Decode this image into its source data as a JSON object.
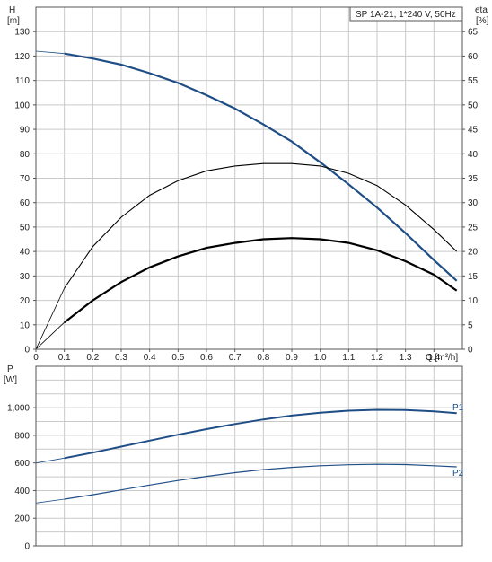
{
  "chart_data": [
    {
      "type": "line",
      "title": "SP 1A-21, 1*240 V, 50Hz",
      "xlabel": "Q [m³/h]",
      "ylabel_left": [
        "H",
        "[m]"
      ],
      "ylabel_right": [
        "eta",
        "[%]"
      ],
      "xlim": [
        0,
        1.5
      ],
      "ylim_left": [
        0,
        140
      ],
      "ylim_right": [
        0,
        70
      ],
      "x_ticks": [
        "0",
        "0.1",
        "0.2",
        "0.3",
        "0.4",
        "0.5",
        "0.6",
        "0.7",
        "0.8",
        "0.9",
        "1.0",
        "1.1",
        "1.2",
        "1.3",
        "1.4"
      ],
      "y_ticks_left": [
        "0",
        "10",
        "20",
        "30",
        "40",
        "50",
        "60",
        "70",
        "80",
        "90",
        "100",
        "110",
        "120",
        "130"
      ],
      "y_ticks_right": [
        "0",
        "5",
        "10",
        "15",
        "20",
        "25",
        "30",
        "35",
        "40",
        "45",
        "50",
        "55",
        "60",
        "65"
      ],
      "grid": true,
      "series": [
        {
          "axis": "left",
          "color": "#1f4e87",
          "x": [
            0,
            0.1,
            0.2,
            0.3,
            0.4,
            0.5,
            0.6,
            0.7,
            0.8,
            0.9,
            1.0,
            1.1,
            1.2,
            1.3,
            1.4,
            1.48
          ],
          "values": [
            122,
            121,
            119,
            116.5,
            113,
            109,
            104,
            98.5,
            92,
            85,
            76.5,
            67.5,
            58,
            47.5,
            36.5,
            28
          ]
        },
        {
          "axis": "right",
          "color": "#000000",
          "x": [
            0,
            0.1,
            0.2,
            0.3,
            0.4,
            0.5,
            0.6,
            0.7,
            0.8,
            0.9,
            1.0,
            1.1,
            1.2,
            1.3,
            1.4,
            1.48
          ],
          "values": [
            0,
            12.5,
            21,
            27,
            31.5,
            34.5,
            36.5,
            37.5,
            38,
            38,
            37.5,
            36,
            33.5,
            29.5,
            24.5,
            20
          ]
        },
        {
          "axis": "left",
          "color": "#000000",
          "x": [
            0,
            0.1,
            0.2,
            0.3,
            0.4,
            0.5,
            0.6,
            0.7,
            0.8,
            0.9,
            1.0,
            1.1,
            1.2,
            1.3,
            1.4,
            1.48
          ],
          "values": [
            0,
            11,
            20,
            27.5,
            33.5,
            38,
            41.5,
            43.5,
            45,
            45.5,
            45,
            43.5,
            40.5,
            36,
            30.5,
            24
          ]
        }
      ]
    },
    {
      "type": "line",
      "ylabel": [
        "P",
        "[W]"
      ],
      "xlim": [
        0,
        1.5
      ],
      "ylim": [
        0,
        1300
      ],
      "y_ticks": [
        "0",
        "200",
        "400",
        "600",
        "800",
        "1,000"
      ],
      "grid": true,
      "series": [
        {
          "name": "P1",
          "color": "#1f4e87",
          "x": [
            0,
            0.1,
            0.2,
            0.3,
            0.4,
            0.5,
            0.6,
            0.7,
            0.8,
            0.9,
            1.0,
            1.1,
            1.2,
            1.3,
            1.4,
            1.48
          ],
          "values": [
            600,
            635,
            675,
            718,
            762,
            805,
            845,
            882,
            915,
            943,
            964,
            978,
            985,
            983,
            973,
            960
          ]
        },
        {
          "name": "P2",
          "color": "#1f4e87",
          "x": [
            0,
            0.1,
            0.2,
            0.3,
            0.4,
            0.5,
            0.6,
            0.7,
            0.8,
            0.9,
            1.0,
            1.1,
            1.2,
            1.3,
            1.4,
            1.48
          ],
          "values": [
            310,
            338,
            370,
            405,
            440,
            473,
            503,
            530,
            552,
            568,
            580,
            587,
            590,
            588,
            580,
            572
          ]
        }
      ]
    }
  ]
}
